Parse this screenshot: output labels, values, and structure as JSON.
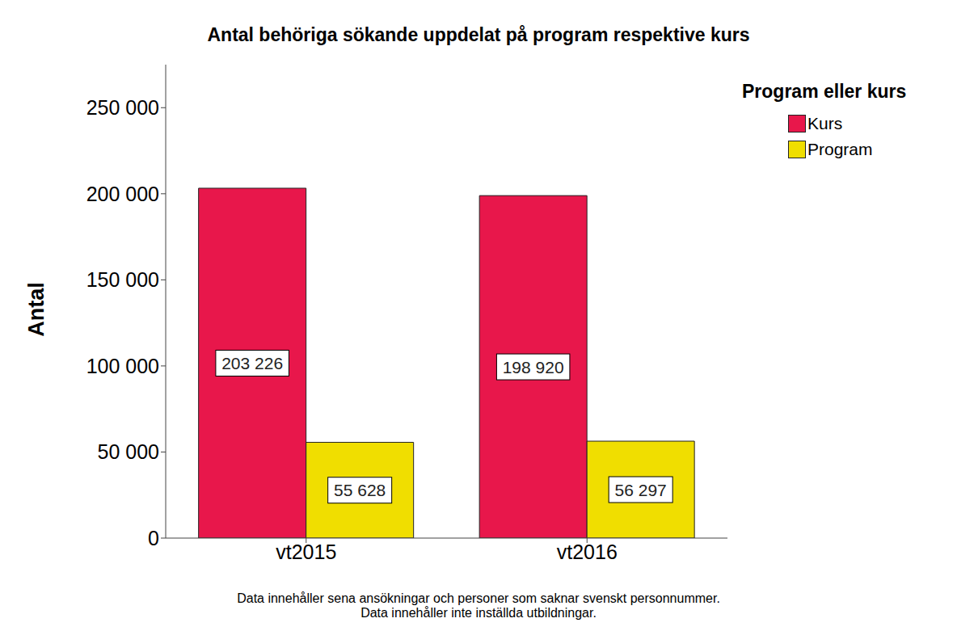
{
  "chart_data": {
    "type": "bar",
    "title": "Antal behöriga sökande uppdelat på program respektive kurs",
    "y_label": "Antal",
    "legend_title": "Program eller kurs",
    "annotations": [
      "Data innehåller sena ansökningar och personer som saknar svenskt personnummer.",
      "Data innehåller inte inställda utbildningar."
    ],
    "categories": [
      "vt2015",
      "vt2016"
    ],
    "series": [
      {
        "name": "Kurs",
        "color": "#e8174b",
        "values": [
          203226,
          198920
        ],
        "value_labels": [
          "203 226",
          "198 920"
        ]
      },
      {
        "name": "Program",
        "color": "#f0de00",
        "values": [
          55628,
          56297
        ],
        "value_labels": [
          "55 628",
          "56 297"
        ]
      }
    ],
    "ylim": [
      0,
      275000
    ],
    "yticks": [
      0,
      {
        "value": 50000,
        "label": "50 000"
      },
      {
        "value": 100000,
        "label": "100 000"
      },
      {
        "value": 150000,
        "label": "150 000"
      },
      {
        "value": 200000,
        "label": "200 000"
      },
      {
        "value": 250000,
        "label": "250 000"
      }
    ],
    "grid": false,
    "legend": "right",
    "data_labels": true
  }
}
